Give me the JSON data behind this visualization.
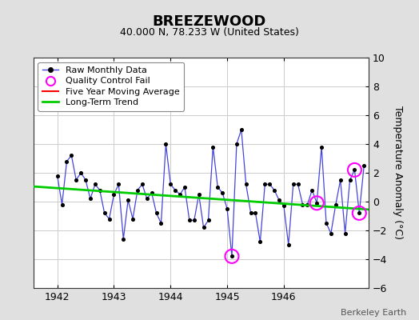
{
  "title": "BREEZEWOOD",
  "subtitle": "40.000 N, 78.233 W (United States)",
  "ylabel": "Temperature Anomaly (°C)",
  "credit": "Berkeley Earth",
  "ylim": [
    -6,
    10
  ],
  "yticks": [
    -6,
    -4,
    -2,
    0,
    2,
    4,
    6,
    8,
    10
  ],
  "xlim": [
    1941.58,
    1947.5
  ],
  "xtick_vals": [
    1942,
    1943,
    1944,
    1945,
    1946
  ],
  "background_color": "#e0e0e0",
  "plot_bg_color": "#ffffff",
  "monthly_data": [
    [
      1942.0,
      1.8
    ],
    [
      1942.083,
      -0.2
    ],
    [
      1942.167,
      2.8
    ],
    [
      1942.25,
      3.2
    ],
    [
      1942.333,
      1.5
    ],
    [
      1942.417,
      2.0
    ],
    [
      1942.5,
      1.5
    ],
    [
      1942.583,
      0.2
    ],
    [
      1942.667,
      1.2
    ],
    [
      1942.75,
      0.8
    ],
    [
      1942.833,
      -0.8
    ],
    [
      1942.917,
      -1.2
    ],
    [
      1943.0,
      0.5
    ],
    [
      1943.083,
      1.2
    ],
    [
      1943.167,
      -2.6
    ],
    [
      1943.25,
      0.1
    ],
    [
      1943.333,
      -1.2
    ],
    [
      1943.417,
      0.8
    ],
    [
      1943.5,
      1.2
    ],
    [
      1943.583,
      0.2
    ],
    [
      1943.667,
      0.6
    ],
    [
      1943.75,
      -0.8
    ],
    [
      1943.833,
      -1.5
    ],
    [
      1943.917,
      4.0
    ],
    [
      1944.0,
      1.2
    ],
    [
      1944.083,
      0.8
    ],
    [
      1944.167,
      0.5
    ],
    [
      1944.25,
      1.0
    ],
    [
      1944.333,
      -1.3
    ],
    [
      1944.417,
      -1.3
    ],
    [
      1944.5,
      0.5
    ],
    [
      1944.583,
      -1.8
    ],
    [
      1944.667,
      -1.3
    ],
    [
      1944.75,
      3.8
    ],
    [
      1944.833,
      1.0
    ],
    [
      1944.917,
      0.6
    ],
    [
      1945.0,
      -0.5
    ],
    [
      1945.083,
      -3.8
    ],
    [
      1945.167,
      4.0
    ],
    [
      1945.25,
      5.0
    ],
    [
      1945.333,
      1.2
    ],
    [
      1945.417,
      -0.8
    ],
    [
      1945.5,
      -0.8
    ],
    [
      1945.583,
      -2.8
    ],
    [
      1945.667,
      1.2
    ],
    [
      1945.75,
      1.2
    ],
    [
      1945.833,
      0.8
    ],
    [
      1945.917,
      0.1
    ],
    [
      1946.0,
      -0.3
    ],
    [
      1946.083,
      -3.0
    ],
    [
      1946.167,
      1.2
    ],
    [
      1946.25,
      1.2
    ],
    [
      1946.333,
      -0.2
    ],
    [
      1946.417,
      -0.2
    ],
    [
      1946.5,
      0.8
    ],
    [
      1946.583,
      -0.1
    ],
    [
      1946.667,
      3.8
    ],
    [
      1946.75,
      -1.5
    ],
    [
      1946.833,
      -2.2
    ],
    [
      1946.917,
      -0.2
    ],
    [
      1947.0,
      1.5
    ],
    [
      1947.083,
      -2.2
    ],
    [
      1947.167,
      1.5
    ],
    [
      1947.25,
      2.2
    ],
    [
      1947.333,
      -0.8
    ],
    [
      1947.417,
      2.5
    ]
  ],
  "qc_fail_points": [
    [
      1945.083,
      -3.8
    ],
    [
      1946.583,
      -0.1
    ],
    [
      1947.25,
      2.2
    ],
    [
      1947.333,
      -0.8
    ]
  ],
  "trend_x": [
    1941.58,
    1947.5
  ],
  "trend_y": [
    1.05,
    -0.55
  ],
  "line_color": "#4444dd",
  "marker_color": "#000000",
  "trend_color": "#00cc00",
  "qc_color": "#ff00ff",
  "ma_color": "#ff0000",
  "title_fontsize": 13,
  "subtitle_fontsize": 9,
  "tick_fontsize": 9,
  "ylabel_fontsize": 9,
  "legend_fontsize": 8,
  "credit_fontsize": 8
}
